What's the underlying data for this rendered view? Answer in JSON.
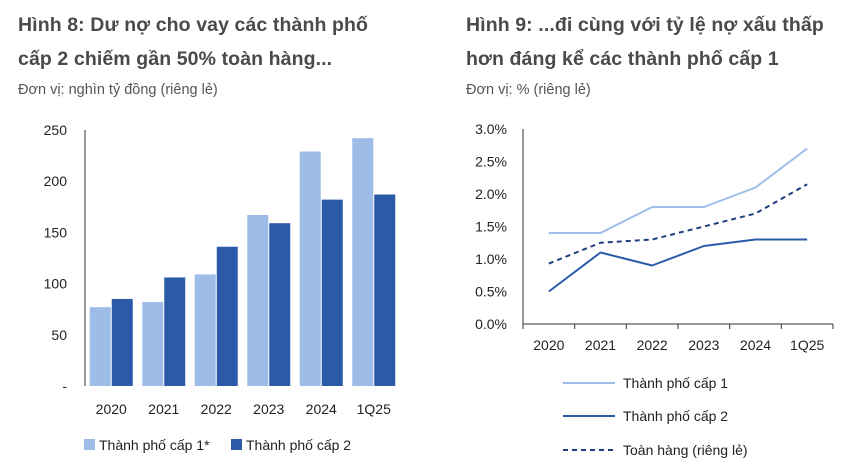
{
  "chart_data": [
    {
      "type": "bar",
      "title_line1": "Hình 8: Dư nợ cho vay các thành phố",
      "title_line2": "cấp 2 chiếm gần 50% toàn hàng...",
      "unit": "Đơn vị: nghìn tỷ đồng (riêng lẻ)",
      "categories": [
        "2020",
        "2021",
        "2022",
        "2023",
        "2024",
        "1Q25"
      ],
      "ylim": [
        0,
        250
      ],
      "yticks": [
        0,
        50,
        100,
        150,
        200,
        250
      ],
      "ytick_labels": [
        "-",
        "50",
        "100",
        "150",
        "200",
        "250"
      ],
      "series": [
        {
          "name": "Thành phố cấp 1*",
          "color": "#9dbde8",
          "values": [
            77,
            82,
            109,
            167,
            229,
            242
          ]
        },
        {
          "name": "Thành phố cấp 2",
          "color": "#2b5aa8",
          "values": [
            85,
            106,
            136,
            159,
            182,
            187
          ]
        }
      ],
      "legend_position": "bottom"
    },
    {
      "type": "line",
      "title_line1": "Hình 9: ...đi cùng với tỷ lệ nợ xấu thấp",
      "title_line2": "hơn đáng kể các thành phố cấp 1",
      "unit": "Đơn vị: % (riêng lẻ)",
      "categories": [
        "2020",
        "2021",
        "2022",
        "2023",
        "2024",
        "1Q25"
      ],
      "ylim": [
        0,
        3.0
      ],
      "yticks": [
        0,
        0.5,
        1.0,
        1.5,
        2.0,
        2.5,
        3.0
      ],
      "ytick_labels": [
        "0.0%",
        "0.5%",
        "1.0%",
        "1.5%",
        "2.0%",
        "2.5%",
        "3.0%"
      ],
      "series": [
        {
          "name": "Thành phố cấp 1",
          "color": "#9dbde8",
          "style": "solid",
          "values": [
            1.4,
            1.4,
            1.8,
            1.8,
            2.1,
            2.7
          ]
        },
        {
          "name": "Thành phố cấp 2",
          "color": "#2b5aa8",
          "style": "solid",
          "values": [
            0.5,
            1.1,
            0.9,
            1.2,
            1.3,
            1.3
          ]
        },
        {
          "name": "Toàn hàng (riêng lẻ)",
          "color": "#1f3f7f",
          "style": "dashed",
          "values": [
            0.93,
            1.25,
            1.3,
            1.5,
            1.7,
            2.15
          ]
        }
      ],
      "legend_position": "bottom"
    }
  ]
}
